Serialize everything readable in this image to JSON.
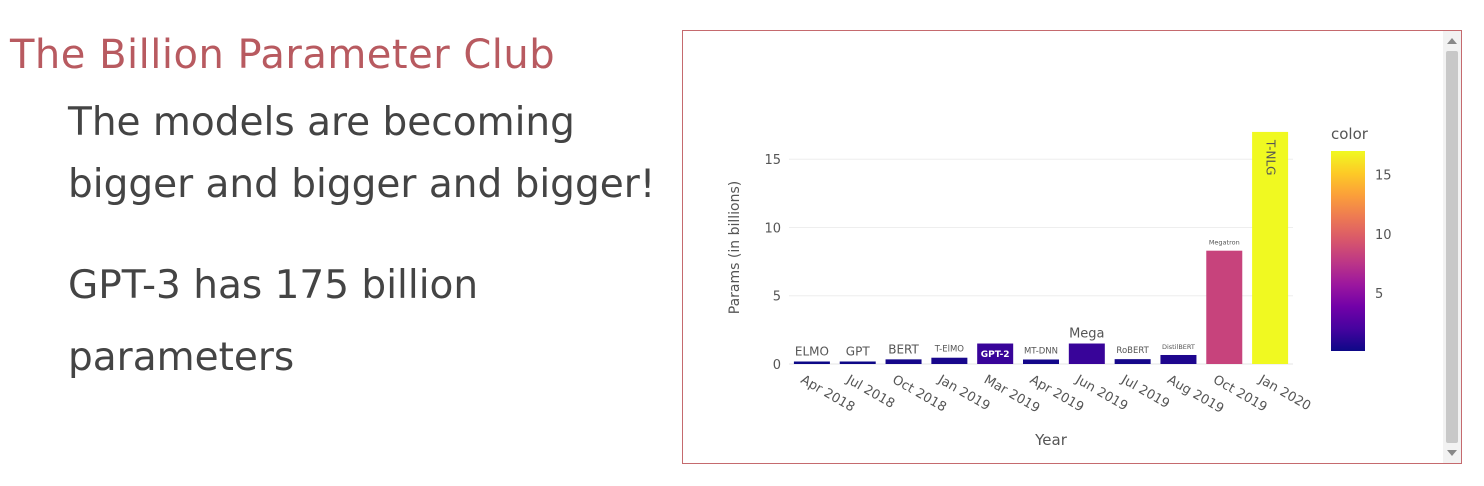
{
  "slide": {
    "title": "The Billion Parameter Club",
    "bullets": [
      [
        "The models are becoming",
        "bigger and bigger and bigger!"
      ],
      [
        "GPT-3 has 175 billion",
        "parameters"
      ]
    ]
  },
  "chart_data": {
    "type": "bar",
    "xlabel": "Year",
    "ylabel": "Params (in billions)",
    "ylim": [
      0,
      17.8
    ],
    "yticks": [
      0,
      5,
      10,
      15
    ],
    "grid": true,
    "colorbar": {
      "title": "color",
      "ticks": [
        5,
        10,
        15
      ],
      "range": [
        0.09,
        17
      ],
      "colorscale": [
        "#0d0887",
        "#46039f",
        "#7201a8",
        "#9c179e",
        "#bd3786",
        "#d8576b",
        "#ed7953",
        "#fb9f3a",
        "#fdca26",
        "#f0f921"
      ]
    },
    "categories": [
      "Apr 2018",
      "Jul 2018",
      "Oct 2018",
      "Jan 2019",
      "Mar 2019",
      "Apr 2019",
      "Jun 2019",
      "Jul 2019",
      "Aug 2019",
      "Oct 2019",
      "Jan 2020"
    ],
    "labels": [
      "ELMO",
      "GPT",
      "BERT",
      "T-ElMO",
      "GPT-2",
      "MT-DNN",
      "Mega",
      "RoBERT",
      "DistilBERT",
      "Megatron",
      "T-NLG"
    ],
    "values": [
      0.094,
      0.11,
      0.34,
      0.46,
      1.5,
      0.33,
      1.5,
      0.355,
      0.66,
      8.3,
      17
    ]
  }
}
